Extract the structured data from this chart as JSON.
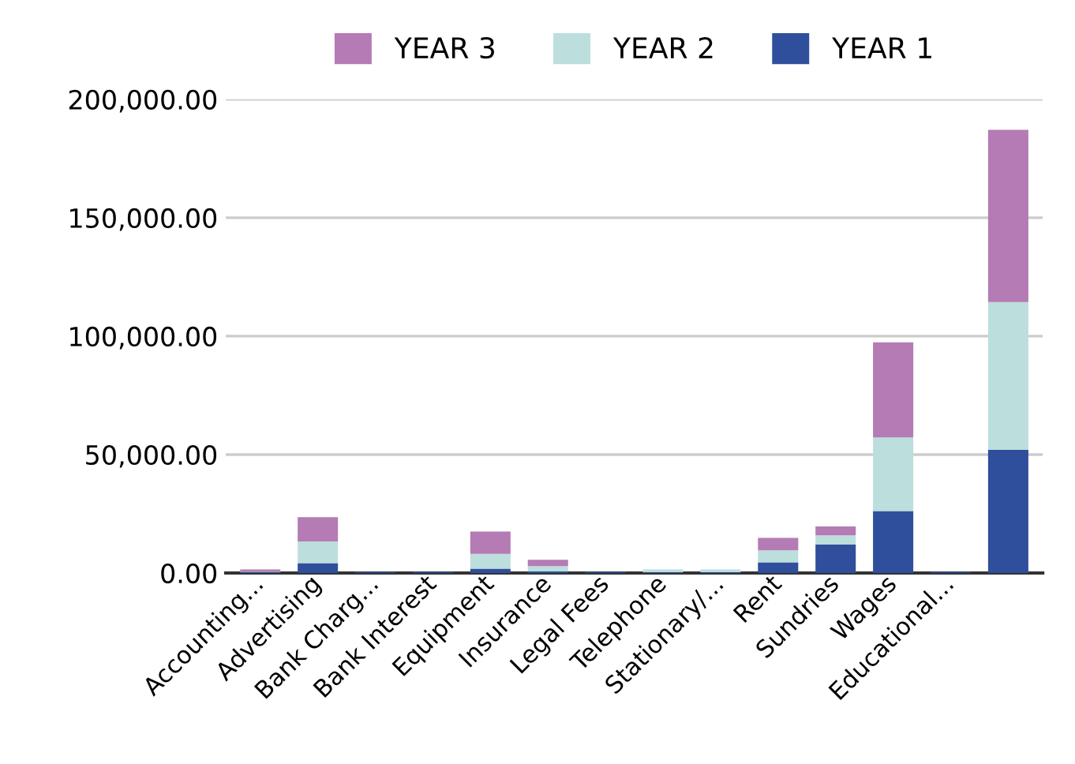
{
  "chart_data": {
    "type": "bar",
    "stacked": true,
    "categories": [
      "Accounting...",
      "Advertising",
      "Bank Charg...",
      "Bank Interest",
      "Equipment",
      "Insurance",
      "Legal Fees",
      "Telephone",
      "Stationary/...",
      "Rent",
      "Sundries",
      "Wages",
      "Educational...",
      null
    ],
    "series": [
      {
        "name": "YEAR 1",
        "color": "#2f4f9c",
        "values": [
          300,
          4200,
          500,
          500,
          1800,
          700,
          500,
          300,
          300,
          4500,
          12100,
          26200,
          500,
          52000
        ]
      },
      {
        "name": "YEAR 2",
        "color": "#bcdedc",
        "values": [
          300,
          9100,
          0,
          0,
          6300,
          2200,
          0,
          1200,
          1200,
          5100,
          3800,
          31000,
          0,
          62400
        ]
      },
      {
        "name": "YEAR 3",
        "color": "#b47bb4",
        "values": [
          900,
          10300,
          0,
          0,
          9400,
          2700,
          0,
          0,
          0,
          5200,
          3800,
          40200,
          0,
          72700
        ]
      }
    ],
    "ylim": [
      0,
      200000
    ],
    "yticks": [
      {
        "value": 0,
        "label": "0.00"
      },
      {
        "value": 50000,
        "label": "50,000.00"
      },
      {
        "value": 100000,
        "label": "100,000.00"
      },
      {
        "value": 150000,
        "label": "150,000.00"
      },
      {
        "value": 200000,
        "label": "200,000.00"
      }
    ],
    "grid": "y",
    "legend": "top"
  }
}
